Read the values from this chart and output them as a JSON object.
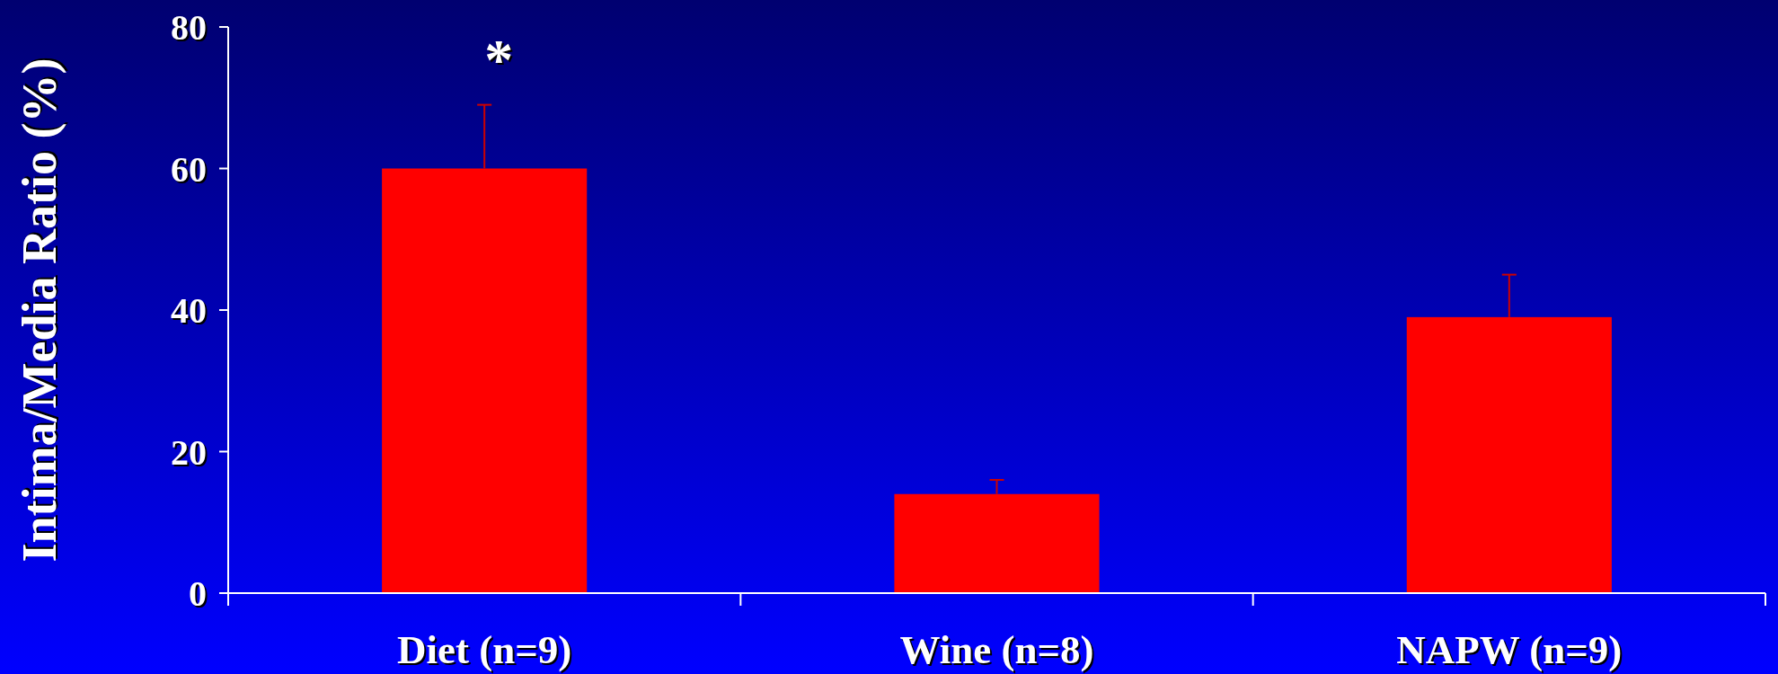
{
  "chart_data": {
    "type": "bar",
    "ylabel": "Intima/Media Ratio (%)",
    "categories": [
      "Diet (n=9)",
      "Wine (n=8)",
      "NAPW (n=9)"
    ],
    "values": [
      60,
      14,
      39
    ],
    "color": "#ff0000",
    "errors": [
      [
        60,
        69
      ],
      [
        14,
        16
      ],
      [
        39,
        45
      ]
    ],
    "ylim": [
      0,
      80
    ],
    "yticks": [
      0,
      20,
      40,
      60,
      80
    ],
    "grid": false,
    "annotations": [
      "*"
    ]
  }
}
